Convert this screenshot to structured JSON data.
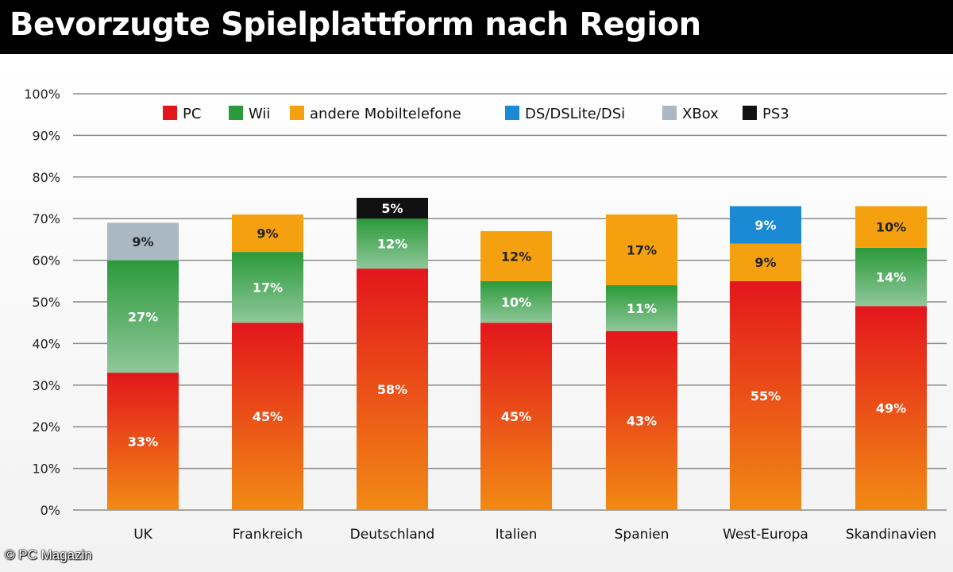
{
  "title": "Bevorzugte Spielplattform nach Region",
  "credit": "© PC Magazin",
  "colors": {
    "PC": "#e3161c",
    "PC_bottom": "#f28a14",
    "Wii": "#2b9a3a",
    "Wii_bottom": "#8fc79a",
    "andere Mobiltelefone": "#f5a10f",
    "DS/DSLite/DSi": "#1a8ad4",
    "XBox": "#a9b8c2",
    "PS3": "#111111"
  },
  "chart_data": {
    "type": "bar",
    "stacked": true,
    "title": "Bevorzugte Spielplattform nach Region",
    "xlabel": "",
    "ylabel": "",
    "ylim": [
      0,
      100
    ],
    "yticks": [
      "0%",
      "10%",
      "20%",
      "30%",
      "40%",
      "50%",
      "60%",
      "70%",
      "80%",
      "90%",
      "100%"
    ],
    "grid": true,
    "legend_position": "top",
    "categories": [
      "UK",
      "Frankreich",
      "Deutschland",
      "Italien",
      "Spanien",
      "West-Europa",
      "Skandinavien"
    ],
    "legend": [
      "PC",
      "Wii",
      "andere Mobiltelefone",
      "DS/DSLite/DSi",
      "XBox",
      "PS3"
    ],
    "series": [
      {
        "name": "PC",
        "values": [
          33,
          45,
          58,
          45,
          43,
          55,
          49
        ],
        "labels": [
          "33%",
          "45%",
          "58%",
          "45%",
          "43%",
          "55%",
          "49%"
        ]
      },
      {
        "name": "Wii",
        "values": [
          27,
          17,
          12,
          10,
          11,
          0,
          14
        ],
        "labels": [
          "27%",
          "17%",
          "12%",
          "10%",
          "11%",
          "",
          "14%"
        ]
      },
      {
        "name": "andere Mobiltelefone",
        "values": [
          0,
          9,
          0,
          12,
          17,
          9,
          10
        ],
        "labels": [
          "",
          "9%",
          "",
          "12%",
          "17%",
          "9%",
          "10%"
        ]
      },
      {
        "name": "DS/DSLite/DSi",
        "values": [
          0,
          0,
          0,
          0,
          0,
          9,
          0
        ],
        "labels": [
          "",
          "",
          "",
          "",
          "",
          "9%",
          ""
        ]
      },
      {
        "name": "XBox",
        "values": [
          9,
          0,
          0,
          0,
          0,
          0,
          0
        ],
        "labels": [
          "9%",
          "",
          "",
          "",
          "",
          "",
          ""
        ]
      },
      {
        "name": "PS3",
        "values": [
          0,
          0,
          5,
          0,
          0,
          0,
          0
        ],
        "labels": [
          "",
          "",
          "5%",
          "",
          "",
          "",
          ""
        ]
      }
    ]
  }
}
